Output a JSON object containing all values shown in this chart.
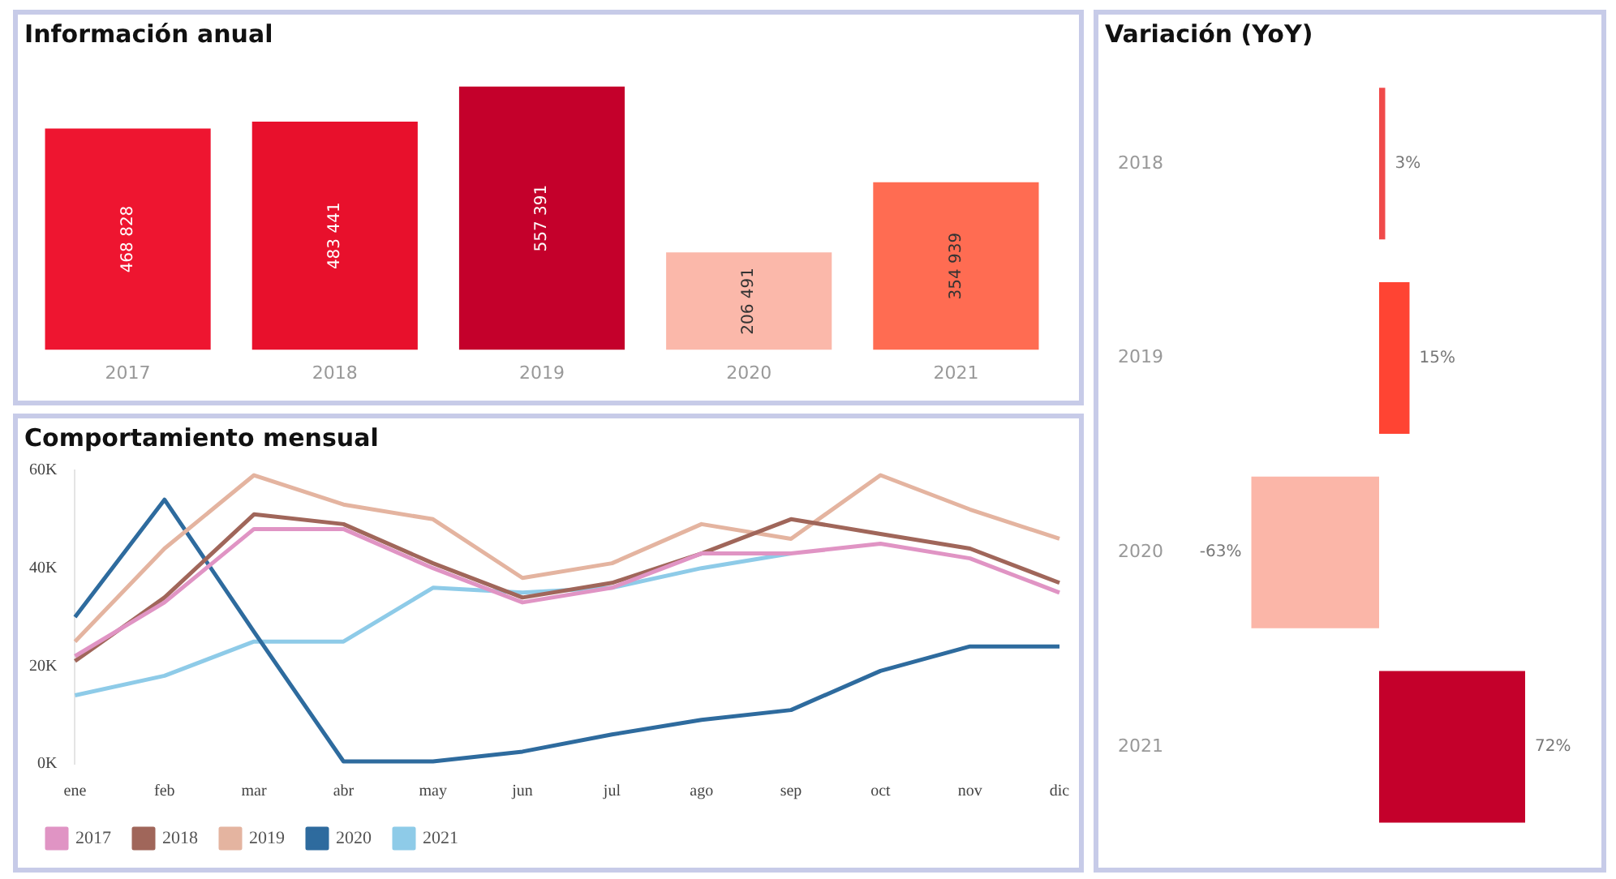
{
  "chart_data": [
    {
      "type": "bar",
      "title": "Información anual",
      "categories": [
        "2017",
        "2018",
        "2019",
        "2020",
        "2021"
      ],
      "values": [
        468828,
        483441,
        557391,
        206491,
        354939
      ],
      "value_labels": [
        "468 828",
        "483 441",
        "557 391",
        "206 491",
        "354 939"
      ],
      "colors": [
        "#ee1530",
        "#e8102c",
        "#c4002b",
        "#fbb8aa",
        "#ff6c52"
      ],
      "tick_labels": "x"
    },
    {
      "type": "line",
      "title": "Comportamiento mensual",
      "categories": [
        "ene",
        "feb",
        "mar",
        "abr",
        "may",
        "jun",
        "jul",
        "ago",
        "sep",
        "oct",
        "nov",
        "dic"
      ],
      "ylim": [
        0,
        60000
      ],
      "yticks": [
        {
          "value": 0,
          "label": "0K"
        },
        {
          "value": 20000,
          "label": "20K"
        },
        {
          "value": 40000,
          "label": "40K"
        },
        {
          "value": 60000,
          "label": "60K"
        }
      ],
      "legend": "bottom",
      "marker": "none",
      "line_style": "solid",
      "series": [
        {
          "name": "2017",
          "color": "#e094c4",
          "values": [
            22000,
            33000,
            48000,
            48000,
            40000,
            33000,
            36000,
            43000,
            43000,
            45000,
            42000,
            35000
          ]
        },
        {
          "name": "2018",
          "color": "#a0665a",
          "values": [
            21000,
            34000,
            51000,
            49000,
            41000,
            34000,
            37000,
            43000,
            50000,
            47000,
            44000,
            37000
          ]
        },
        {
          "name": "2019",
          "color": "#e4b4a0",
          "values": [
            25000,
            44000,
            59000,
            53000,
            50000,
            38000,
            41000,
            49000,
            46000,
            59000,
            52000,
            46000
          ]
        },
        {
          "name": "2020",
          "color": "#2e6b9e",
          "values": [
            30000,
            54000,
            27000,
            500,
            500,
            2500,
            6000,
            9000,
            11000,
            19000,
            24000,
            24000
          ]
        },
        {
          "name": "2021",
          "color": "#8ecbe8",
          "values": [
            14000,
            18000,
            25000,
            25000,
            36000,
            35000,
            36000,
            40000,
            43000,
            null,
            null,
            null
          ]
        }
      ]
    },
    {
      "type": "bar",
      "title": "Variación (YoY)",
      "orientation": "horizontal",
      "categories": [
        "2018",
        "2019",
        "2020",
        "2021"
      ],
      "values": [
        3,
        15,
        -63,
        72
      ],
      "value_labels": [
        "3%",
        "15%",
        "-63%",
        "72%"
      ],
      "colors": [
        "#f04a4a",
        "#ff4433",
        "#fbb6a8",
        "#c4002b"
      ],
      "tick_labels": "y"
    }
  ]
}
